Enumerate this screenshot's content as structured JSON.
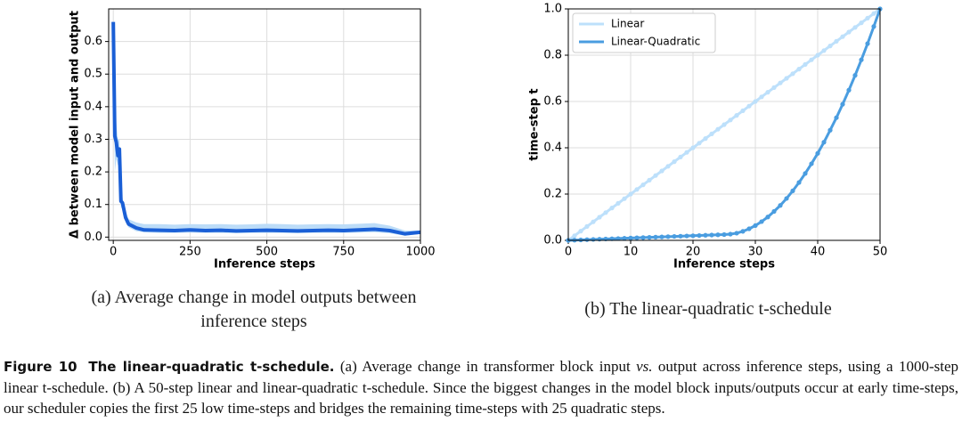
{
  "chart_data": [
    {
      "type": "line",
      "xlabel": "Inference steps",
      "ylabel": "Δ between model input and output",
      "x": [
        0,
        5,
        10,
        15,
        20,
        25,
        30,
        40,
        50,
        75,
        100,
        150,
        200,
        250,
        300,
        350,
        400,
        450,
        500,
        550,
        600,
        650,
        700,
        750,
        800,
        850,
        900,
        950,
        1000
      ],
      "series": [
        {
          "color": "#1a5fd6",
          "values": [
            0.66,
            0.31,
            0.29,
            0.25,
            0.27,
            0.11,
            0.105,
            0.06,
            0.04,
            0.028,
            0.022,
            0.021,
            0.02,
            0.022,
            0.02,
            0.021,
            0.019,
            0.02,
            0.021,
            0.02,
            0.019,
            0.02,
            0.021,
            0.02,
            0.022,
            0.024,
            0.02,
            0.01,
            0.015
          ]
        }
      ],
      "band": {
        "color": "#bcdcf8",
        "upper": [
          0.68,
          0.45,
          0.35,
          0.3,
          0.3,
          0.13,
          0.12,
          0.08,
          0.055,
          0.045,
          0.04,
          0.04,
          0.038,
          0.04,
          0.039,
          0.04,
          0.038,
          0.039,
          0.041,
          0.04,
          0.038,
          0.039,
          0.04,
          0.039,
          0.041,
          0.043,
          0.035,
          0.02,
          0.02
        ],
        "lower": [
          0.64,
          0.2,
          0.24,
          0.22,
          0.24,
          0.09,
          0.09,
          0.045,
          0.03,
          0.018,
          0.015,
          0.013,
          0.013,
          0.014,
          0.013,
          0.013,
          0.012,
          0.013,
          0.013,
          0.013,
          0.012,
          0.013,
          0.013,
          0.013,
          0.014,
          0.015,
          0.012,
          0.004,
          0.01
        ]
      },
      "xlim": [
        -15,
        1000
      ],
      "ylim": [
        -0.01,
        0.7
      ],
      "xticks": [
        0,
        250,
        500,
        750,
        1000
      ],
      "yticks": [
        {
          "value": 0,
          "label": "0.0"
        },
        {
          "value": 0.1,
          "label": "0.1"
        },
        {
          "value": 0.2,
          "label": "0.2"
        },
        {
          "value": 0.3,
          "label": "0.3"
        },
        {
          "value": 0.4,
          "label": "0.4"
        },
        {
          "value": 0.5,
          "label": "0.5"
        },
        {
          "value": 0.6,
          "label": "0.6"
        }
      ],
      "grid": true,
      "subcaption": [
        "(a) Average change in model outputs between",
        "inference steps"
      ]
    },
    {
      "type": "line",
      "xlabel": "Inference steps",
      "ylabel": "time-step t",
      "markers": true,
      "legend": "upper left",
      "x": [
        0,
        1,
        2,
        3,
        4,
        5,
        6,
        7,
        8,
        9,
        10,
        11,
        12,
        13,
        14,
        15,
        16,
        17,
        18,
        19,
        20,
        21,
        22,
        23,
        24,
        25,
        26,
        27,
        28,
        29,
        30,
        31,
        32,
        33,
        34,
        35,
        36,
        37,
        38,
        39,
        40,
        41,
        42,
        43,
        44,
        45,
        46,
        47,
        48,
        49,
        50
      ],
      "series": [
        {
          "name": "Linear",
          "color": "#bde0fb",
          "values": [
            0,
            0.02,
            0.04,
            0.06,
            0.08,
            0.1,
            0.12,
            0.14,
            0.16,
            0.18,
            0.2,
            0.22,
            0.24,
            0.26,
            0.28,
            0.3,
            0.32,
            0.34,
            0.36,
            0.38,
            0.4,
            0.42,
            0.44,
            0.46,
            0.48,
            0.5,
            0.52,
            0.54,
            0.56,
            0.58,
            0.6,
            0.62,
            0.64,
            0.66,
            0.68,
            0.7,
            0.72,
            0.74,
            0.76,
            0.78,
            0.8,
            0.82,
            0.84,
            0.86,
            0.88,
            0.9,
            0.92,
            0.94,
            0.96,
            0.98,
            1.0
          ]
        },
        {
          "name": "Linear-Quadratic",
          "color": "#4a9de0",
          "values": [
            0,
            0.001,
            0.002,
            0.003,
            0.004,
            0.005,
            0.006,
            0.007,
            0.008,
            0.009,
            0.01,
            0.011,
            0.012,
            0.013,
            0.014,
            0.015,
            0.016,
            0.017,
            0.018,
            0.019,
            0.02,
            0.021,
            0.022,
            0.023,
            0.024,
            0.025,
            0.027,
            0.031,
            0.039,
            0.05,
            0.064,
            0.081,
            0.101,
            0.125,
            0.151,
            0.181,
            0.214,
            0.25,
            0.289,
            0.331,
            0.376,
            0.424,
            0.476,
            0.53,
            0.588,
            0.649,
            0.713,
            0.78,
            0.85,
            0.924,
            1.0
          ]
        }
      ],
      "xlim": [
        0,
        50
      ],
      "ylim": [
        0,
        1
      ],
      "xticks": [
        0,
        10,
        20,
        30,
        40,
        50
      ],
      "yticks": [
        {
          "value": 0,
          "label": "0.0"
        },
        {
          "value": 0.2,
          "label": "0.2"
        },
        {
          "value": 0.4,
          "label": "0.4"
        },
        {
          "value": 0.6,
          "label": "0.6"
        },
        {
          "value": 0.8,
          "label": "0.8"
        },
        {
          "value": 1,
          "label": "1.0"
        }
      ],
      "grid": true,
      "subcaption": [
        "(b) The linear-quadratic t-schedule"
      ]
    }
  ],
  "caption": {
    "label": "Figure 10",
    "title": "The linear-quadratic t-schedule.",
    "text_1": "(a) Average change in transformer block input",
    "emphasis": "vs.",
    "text_2": "output across inference steps, using a 1000-step linear t-schedule. (b) A 50-step linear and linear-quadratic t-schedule. Since the biggest changes in the model block inputs/outputs occur at early time-steps, our scheduler copies the first 25 low time-steps and bridges the remaining time-steps with 25 quadratic steps."
  }
}
